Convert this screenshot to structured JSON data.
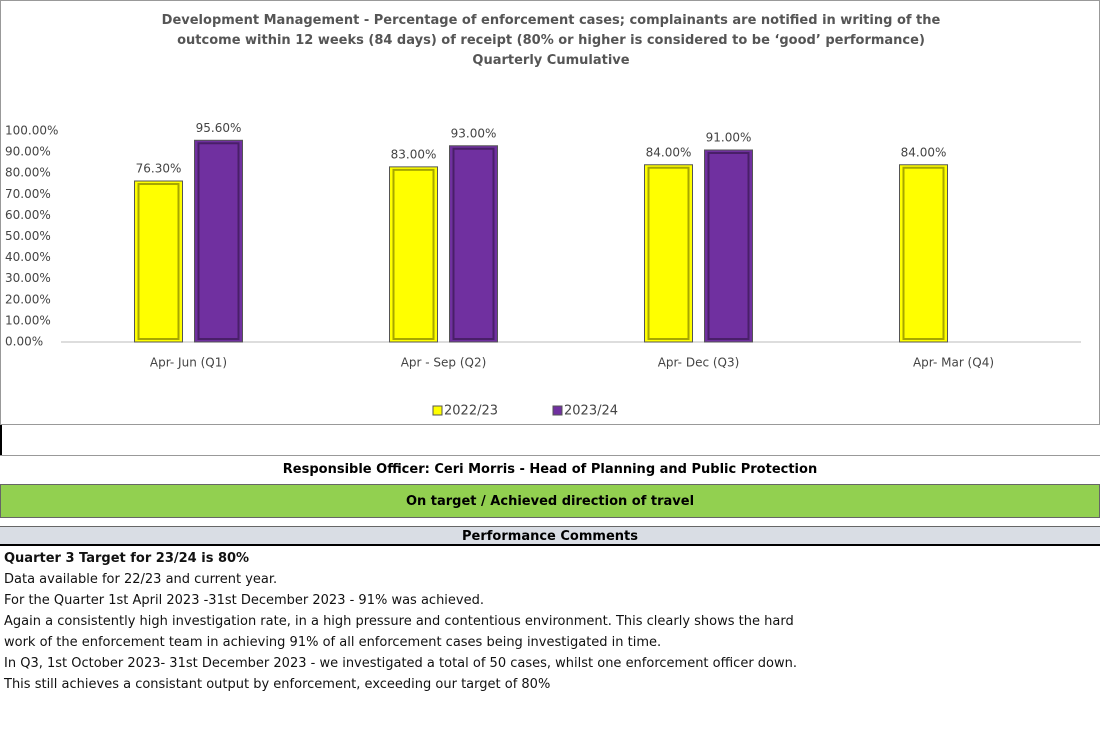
{
  "chart_data": {
    "type": "bar",
    "title": "Development Management - Percentage of enforcement cases; complainants are notified in writing of the outcome within 12 weeks (84 days) of receipt (80% or higher is considered to be ‘good’ performance)",
    "subtitle": "Quarterly Cumulative",
    "categories": [
      "Apr- Jun  (Q1)",
      "Apr - Sep  (Q2)",
      "Apr- Dec  (Q3)",
      "Apr- Mar  (Q4)"
    ],
    "series": [
      {
        "name": "2022/23",
        "color": "#ffff00",
        "values": [
          76.3,
          83,
          84,
          84
        ],
        "value_labels": [
          "76.30%",
          "83.00%",
          "84.00%",
          "84.00%"
        ]
      },
      {
        "name": "2023/24",
        "color": "#7030a0",
        "values": [
          95.6,
          93,
          91,
          null
        ],
        "value_labels": [
          "95.60%",
          "93.00%",
          "91.00%",
          null
        ]
      }
    ],
    "ylim": [
      0,
      100
    ],
    "yticks": [
      {
        "value": 0,
        "label": "0.00%"
      },
      {
        "value": 10,
        "label": "10.00%"
      },
      {
        "value": 20,
        "label": "20.00%"
      },
      {
        "value": 30,
        "label": "30.00%"
      },
      {
        "value": 40,
        "label": "40.00%"
      },
      {
        "value": 50,
        "label": "50.00%"
      },
      {
        "value": 60,
        "label": "60.00%"
      },
      {
        "value": 70,
        "label": "70.00%"
      },
      {
        "value": 80,
        "label": "80.00%"
      },
      {
        "value": 90,
        "label": "90.00%"
      },
      {
        "value": 100,
        "label": "100.00%"
      }
    ],
    "grid": false,
    "legend": "bottom"
  },
  "officer": "Responsible Officer:  Ceri Morris - Head of Planning and Public Protection",
  "status": "On target / Achieved direction of travel",
  "comments_header": "Performance Comments",
  "comments": {
    "heading": "Quarter 3 Target for 23/24 is 80%",
    "lines": [
      "Data available for 22/23 and current year.",
      "For the Quarter 1st April 2023 -31st December 2023 - 91% was achieved.",
      "Again a consistently high investigation rate, in a high pressure and contentious environment. This clearly shows the hard",
      "work of the enforcement team in achieving 91% of all enforcement cases being investigated in time.",
      "In Q3, 1st October 2023- 31st December 2023 - we investigated a total of 50 cases, whilst one enforcement officer down.",
      "This still achieves a consistant output by enforcement, exceeding our target of 80%"
    ]
  }
}
